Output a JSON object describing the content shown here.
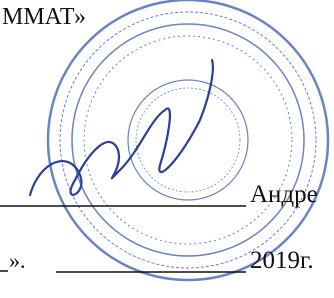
{
  "header": {
    "text": "ММАТ»"
  },
  "signature": {
    "name": "Андре"
  },
  "date": {
    "quote": "».",
    "year": "2019г."
  }
}
